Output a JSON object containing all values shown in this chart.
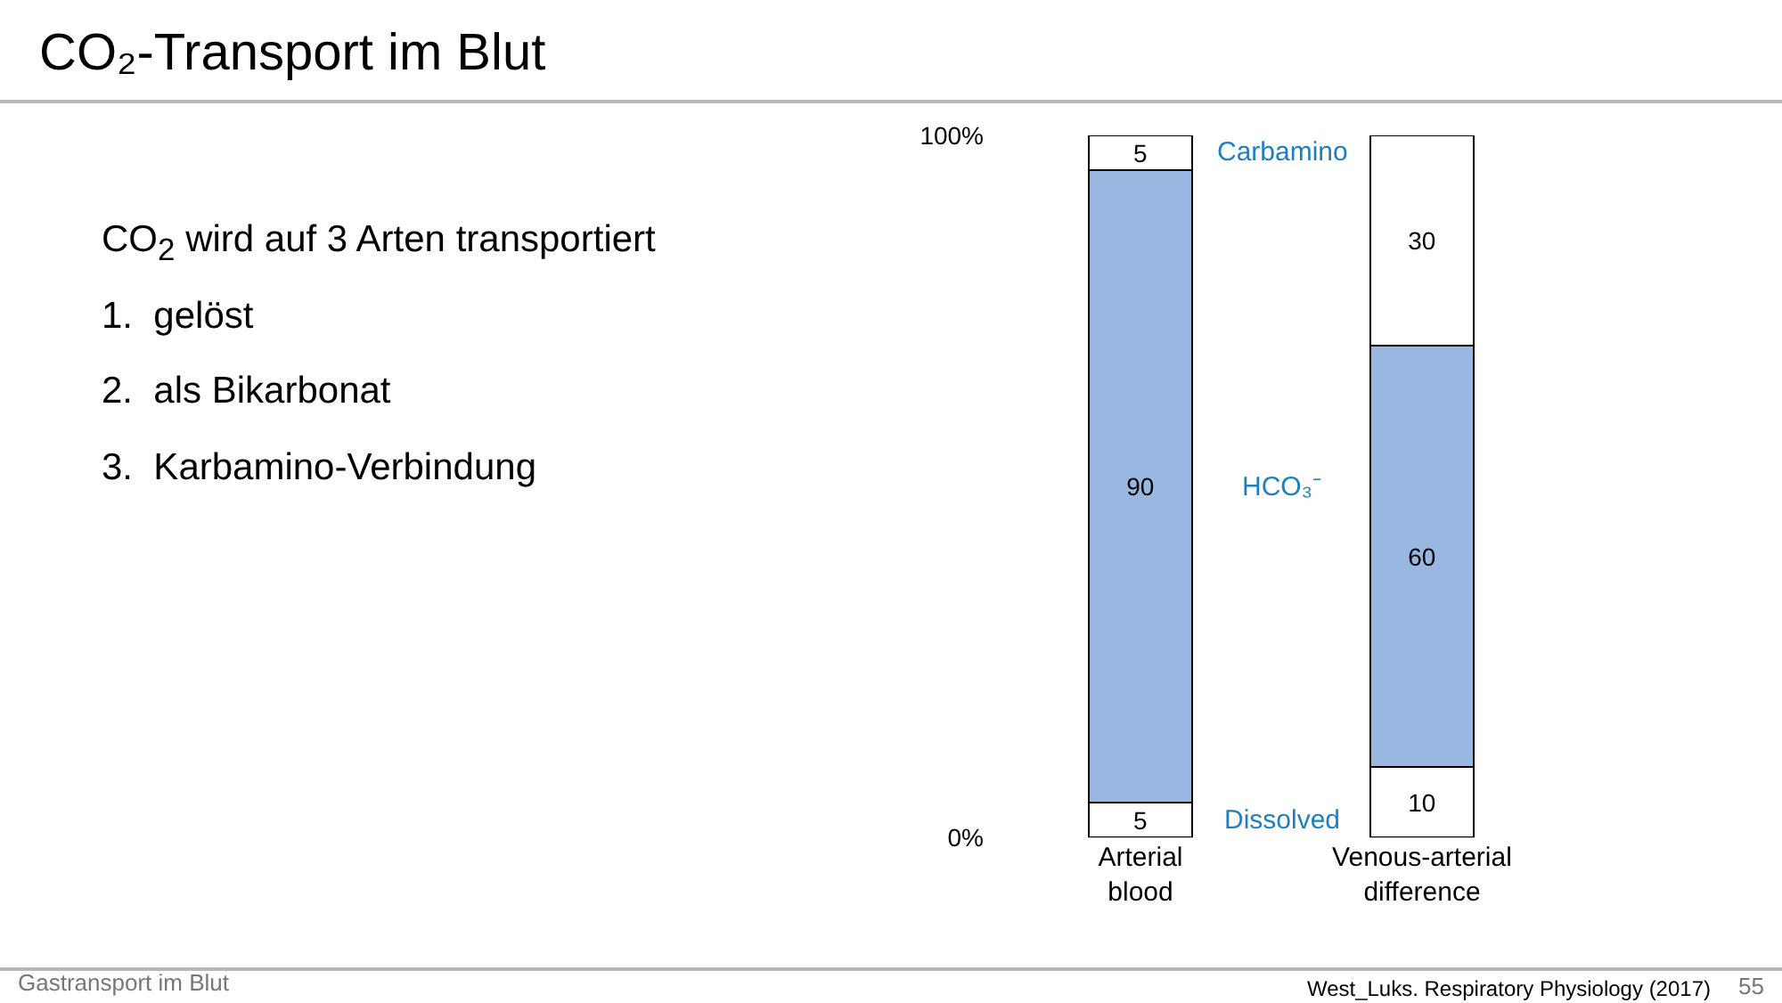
{
  "chart_data": {
    "type": "bar",
    "stacked": true,
    "title": "CO₂-Transport im Blut",
    "categories": [
      "Arterial blood",
      "Venous-arterial difference"
    ],
    "series": [
      {
        "name": "Dissolved",
        "color": "#ffffff",
        "values": [
          5,
          10
        ]
      },
      {
        "name": "HCO₃⁻",
        "color": "#98b8e2",
        "values": [
          90,
          60
        ]
      },
      {
        "name": "Carbamino",
        "color": "#ffffff",
        "values": [
          5,
          30
        ]
      }
    ],
    "ylim": [
      0,
      100
    ],
    "yticks": [
      {
        "value": 0,
        "label": "0%"
      },
      {
        "value": 100,
        "label": "100%"
      }
    ],
    "legend": false,
    "data_labels": true,
    "annotations": [
      "CO$_{2}$ wird auf 3 Arten transportiert",
      "1.  gelöst",
      "2.  als Bikarbonat",
      "3.  Karbamino-Verbindung",
      "Gastransport im Blut",
      "West_Luks. Respiratory Physiology (2017)",
      "55"
    ]
  }
}
